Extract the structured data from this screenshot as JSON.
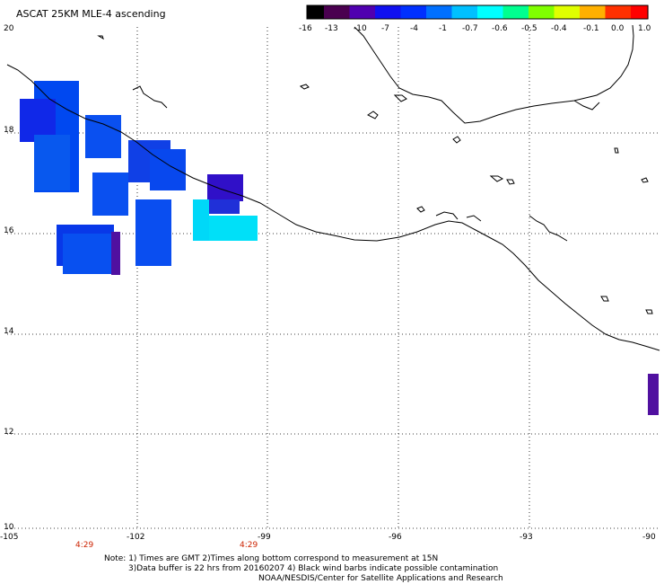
{
  "title": "ASCAT 25KM MLE-4 ascending",
  "colorbar": {
    "ticks": [
      "-16",
      "-13",
      "-10",
      "-7",
      "-4",
      "-1",
      "-0.7",
      "-0.6",
      "-0.5",
      "-0.4",
      "-0.1",
      "0.0",
      "1.0"
    ],
    "colors": [
      "#000000",
      "#4a0050",
      "#5000b0",
      "#1010f0",
      "#0030ff",
      "#0070ff",
      "#00c0ff",
      "#00ffff",
      "#00ff90",
      "#80ff00",
      "#e0ff00",
      "#ffb000",
      "#ff3000",
      "#ff0000"
    ]
  },
  "axes": {
    "lat_labels": [
      "20",
      "18",
      "16",
      "14",
      "12",
      "10"
    ],
    "lon_labels": [
      "-105",
      "-102",
      "-99",
      "-96",
      "-93",
      "-90"
    ],
    "time_labels": [
      "4:29",
      "4:29"
    ]
  },
  "notes": {
    "line1": "Note: 1) Times are GMT 2)Times along bottom correspond to measurement at 15N",
    "line2": "3)Data buffer is 22 hrs from 20160207 4) Black wind barbs indicate possible contamination",
    "line3": "NOAA/NESDIS/Center for Satellite Applications and Research"
  }
}
